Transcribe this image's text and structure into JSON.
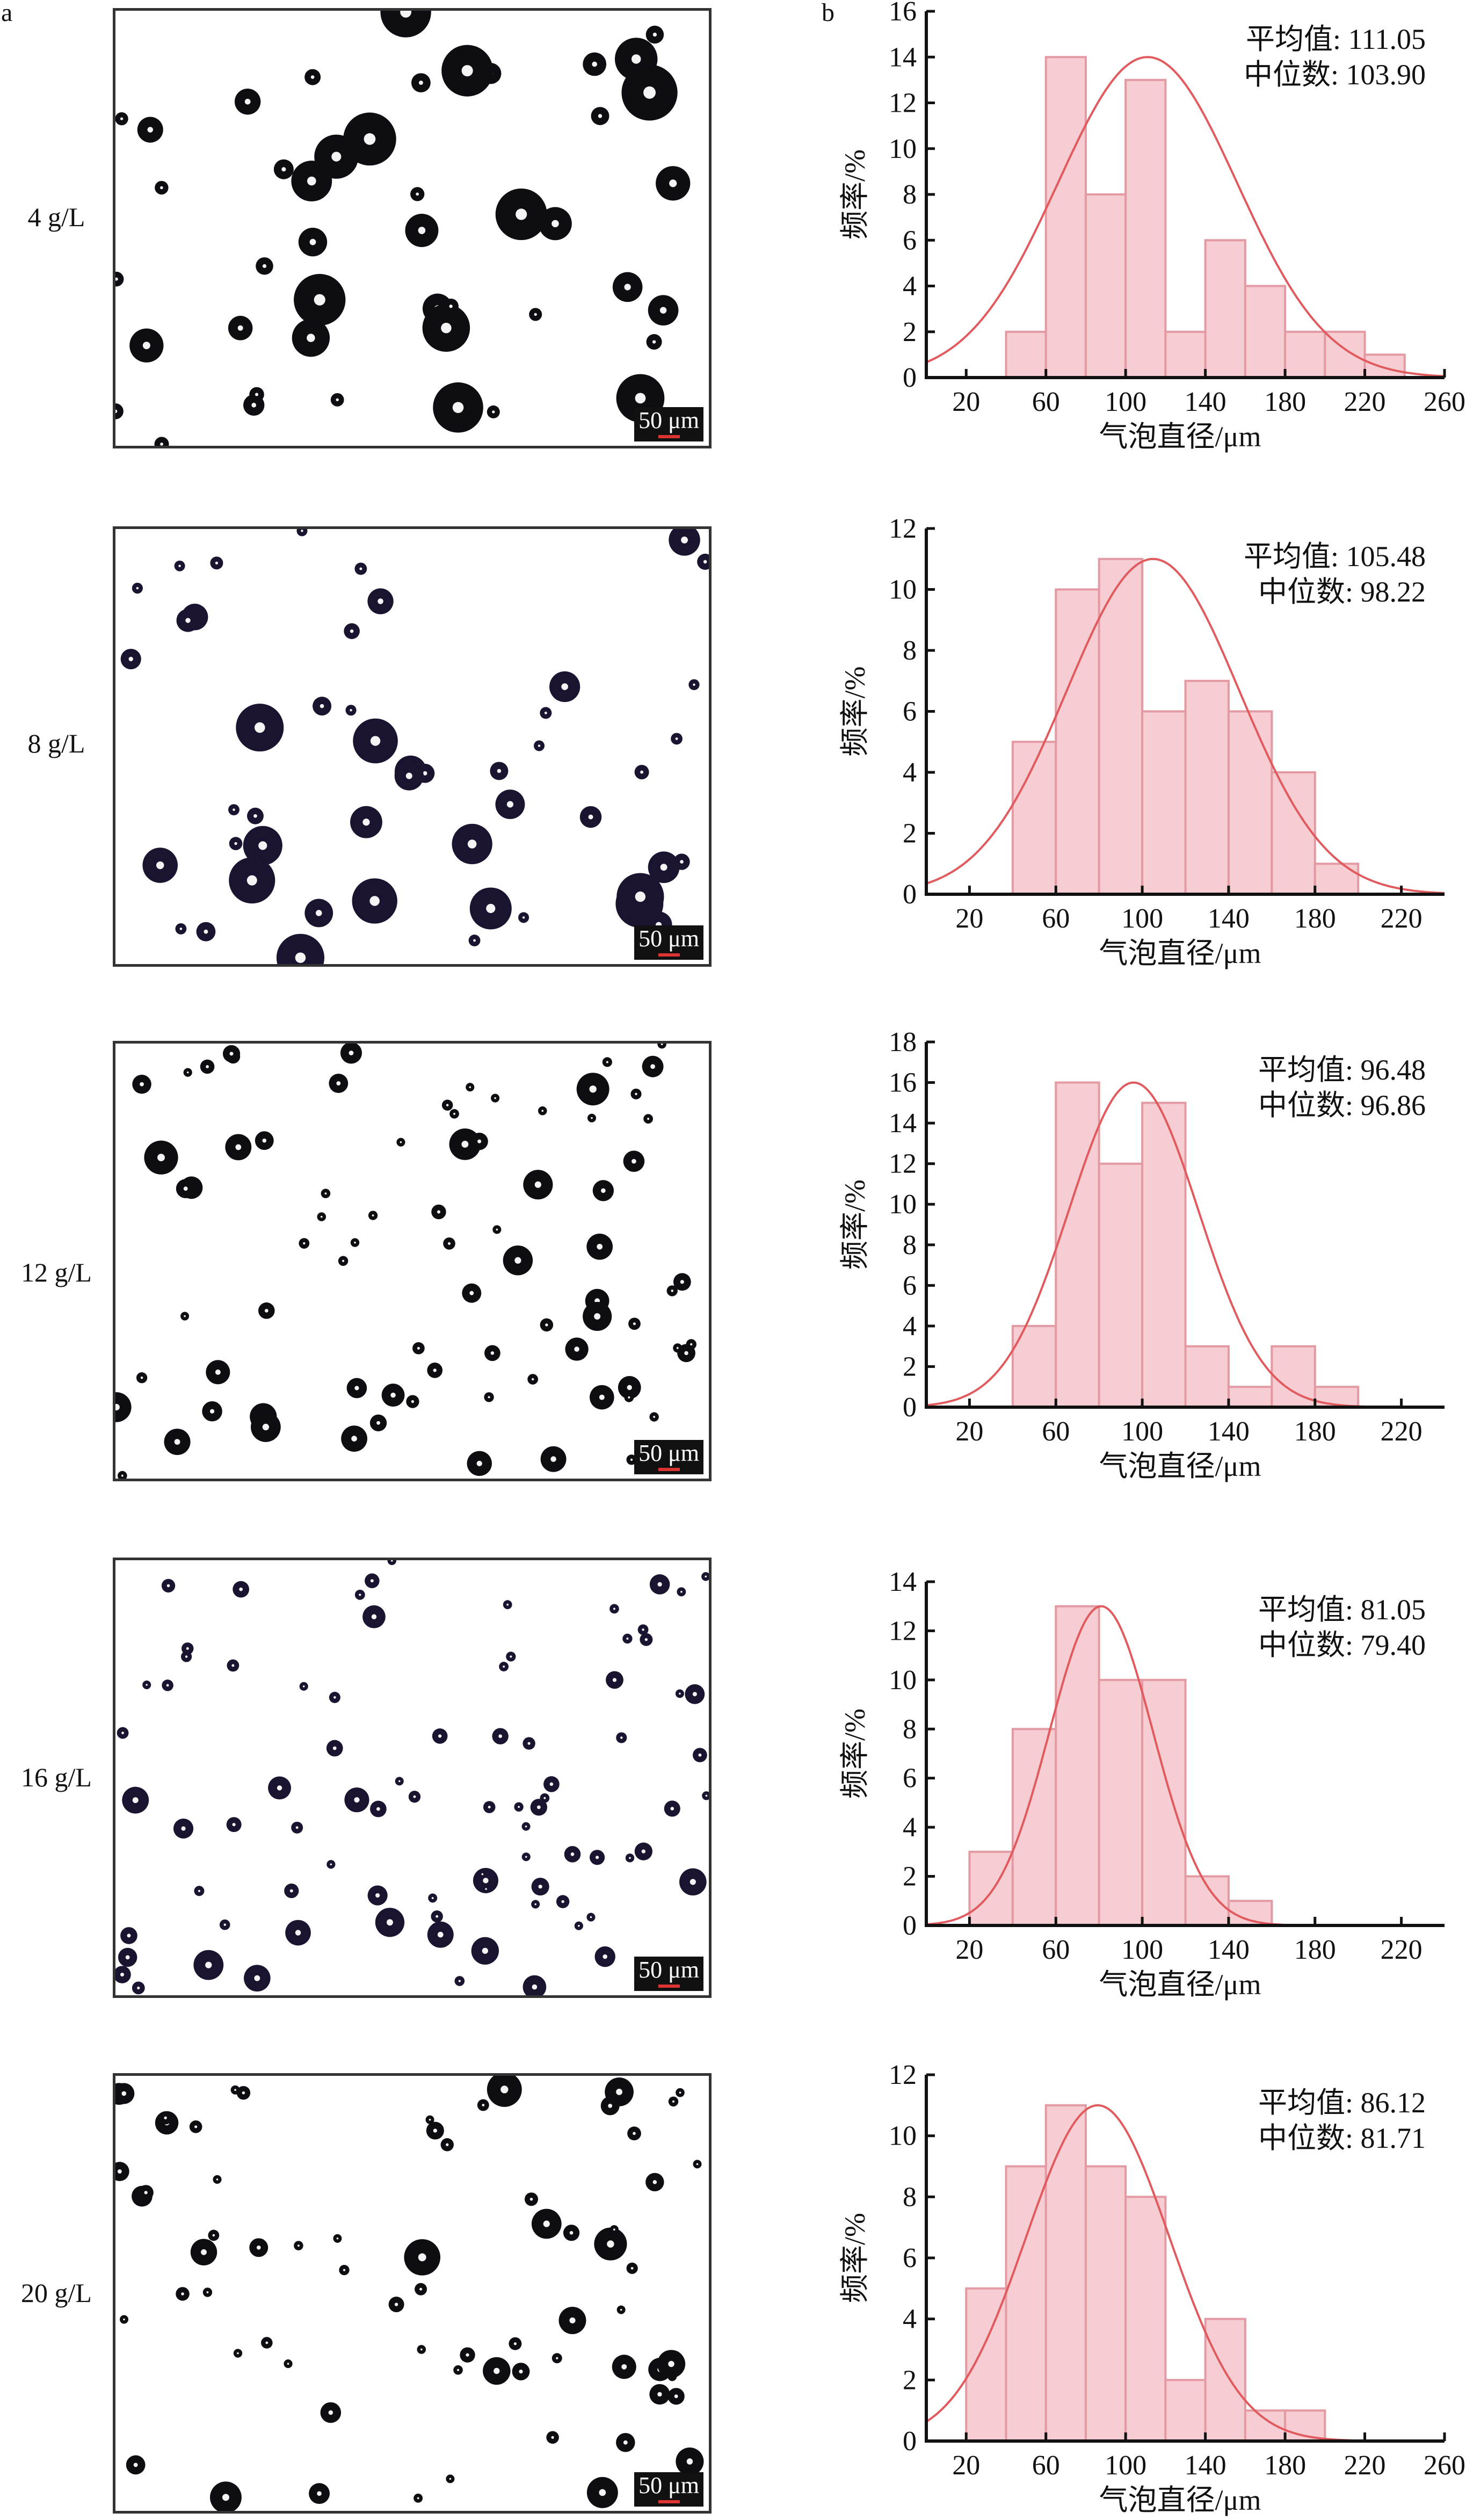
{
  "panel_labels": {
    "a": "a",
    "b": "b"
  },
  "scale_bar_label": "50 μm",
  "rows": [
    {
      "label": "4 g/L"
    },
    {
      "label": "8 g/L"
    },
    {
      "label": "12 g/L"
    },
    {
      "label": "16 g/L"
    },
    {
      "label": "20 g/L"
    }
  ],
  "colors": {
    "bar_fill": "#f6cdd2",
    "bar_edge": "#e39aa2",
    "curve": "#e05a5e",
    "axis": "#111111"
  },
  "chart_data": [
    {
      "type": "bar",
      "title": "",
      "xlabel": "气泡直径/μm",
      "ylabel": "频率/%",
      "xlim": [
        0,
        260
      ],
      "ylim": [
        0,
        16
      ],
      "xticks": [
        20,
        60,
        100,
        140,
        180,
        220,
        260
      ],
      "yticks": [
        0,
        2,
        4,
        6,
        8,
        10,
        12,
        14,
        16
      ],
      "bin_width": 20,
      "bin_starts": [
        40,
        60,
        80,
        100,
        120,
        140,
        160,
        180,
        200,
        220
      ],
      "values": [
        2,
        14,
        8,
        13,
        2,
        6,
        4,
        2,
        2,
        1
      ],
      "fit": {
        "type": "normal",
        "mu": 111,
        "sigma": 45,
        "peak": 14
      },
      "annotations": [
        {
          "label": "平均值",
          "value": "111.05"
        },
        {
          "label": "中位数",
          "value": "103.90"
        }
      ]
    },
    {
      "type": "bar",
      "title": "",
      "xlabel": "气泡直径/μm",
      "ylabel": "频率/%",
      "xlim": [
        0,
        240
      ],
      "ylim": [
        0,
        12
      ],
      "xticks": [
        20,
        60,
        100,
        140,
        180,
        220
      ],
      "yticks": [
        0,
        2,
        4,
        6,
        8,
        10,
        12
      ],
      "bin_width": 20,
      "bin_starts": [
        40,
        60,
        80,
        100,
        120,
        140,
        160,
        180
      ],
      "values": [
        5,
        10,
        11,
        6,
        7,
        6,
        4,
        1
      ],
      "fit": {
        "type": "normal",
        "mu": 105,
        "sigma": 40,
        "peak": 11
      },
      "annotations": [
        {
          "label": "平均值",
          "value": "105.48"
        },
        {
          "label": "中位数",
          "value": "98.22"
        }
      ]
    },
    {
      "type": "bar",
      "title": "",
      "xlabel": "气泡直径/μm",
      "ylabel": "频率/%",
      "xlim": [
        0,
        240
      ],
      "ylim": [
        0,
        18
      ],
      "xticks": [
        20,
        60,
        100,
        140,
        180,
        220
      ],
      "yticks": [
        0,
        2,
        4,
        6,
        8,
        10,
        12,
        14,
        16,
        18
      ],
      "bin_width": 20,
      "bin_starts": [
        40,
        60,
        80,
        100,
        120,
        140,
        160,
        180
      ],
      "values": [
        4,
        16,
        12,
        15,
        3,
        1,
        3,
        1
      ],
      "fit": {
        "type": "normal",
        "mu": 96,
        "sigma": 30,
        "peak": 16
      },
      "annotations": [
        {
          "label": "平均值",
          "value": "96.48"
        },
        {
          "label": "中位数",
          "value": "96.86"
        }
      ]
    },
    {
      "type": "bar",
      "title": "",
      "xlabel": "气泡直径/μm",
      "ylabel": "频率/%",
      "xlim": [
        0,
        240
      ],
      "ylim": [
        0,
        14
      ],
      "xticks": [
        20,
        60,
        100,
        140,
        180,
        220
      ],
      "yticks": [
        0,
        2,
        4,
        6,
        8,
        10,
        12,
        14
      ],
      "bin_width": 20,
      "bin_starts": [
        20,
        40,
        60,
        80,
        100,
        120,
        140
      ],
      "values": [
        3,
        8,
        13,
        10,
        10,
        2,
        1
      ],
      "fit": {
        "type": "normal",
        "mu": 81,
        "sigma": 24,
        "peak": 13
      },
      "annotations": [
        {
          "label": "平均值",
          "value": "81.05"
        },
        {
          "label": "中位数",
          "value": "79.40"
        }
      ]
    },
    {
      "type": "bar",
      "title": "",
      "xlabel": "气泡直径/μm",
      "ylabel": "频率/%",
      "xlim": [
        0,
        260
      ],
      "ylim": [
        0,
        12
      ],
      "xticks": [
        20,
        60,
        100,
        140,
        180,
        220,
        260
      ],
      "yticks": [
        0,
        2,
        4,
        6,
        8,
        10,
        12
      ],
      "bin_width": 20,
      "bin_starts": [
        20,
        40,
        60,
        80,
        100,
        120,
        140,
        160,
        180
      ],
      "values": [
        5,
        9,
        11,
        9,
        8,
        2,
        4,
        1,
        1
      ],
      "fit": {
        "type": "normal",
        "mu": 86,
        "sigma": 36,
        "peak": 11
      },
      "annotations": [
        {
          "label": "平均值",
          "value": "86.12"
        },
        {
          "label": "中位数",
          "value": "81.71"
        }
      ]
    }
  ]
}
